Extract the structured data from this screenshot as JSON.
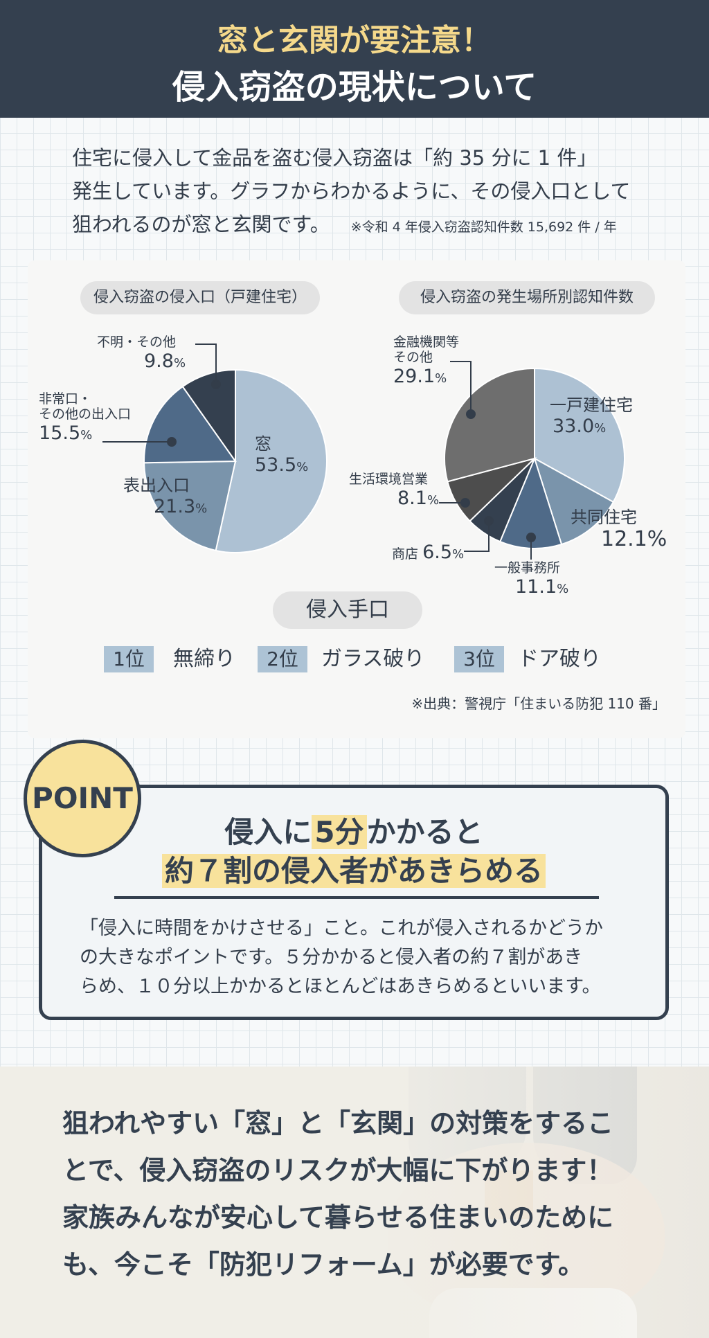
{
  "header": {
    "line1": "窓と玄関が要注意！",
    "line2": "侵入窃盗の現状について"
  },
  "intro": {
    "line1": "住宅に侵入して金品を盗む侵入窃盗は「約 35 分に 1 件」",
    "line2": "発生しています。グラフからわかるように、その侵入口として",
    "line3": "狙われるのが窓と玄関です。",
    "note": "※令和 4 年侵入窃盗認知件数 15,692 件 / 年"
  },
  "chart_data": [
    {
      "type": "pie",
      "title": "侵入窃盗の侵入口（戸建住宅）",
      "start_angle_deg": 0,
      "direction": "clockwise",
      "slices": [
        {
          "label": "窓",
          "value": 53.5,
          "color": "#adc1d3"
        },
        {
          "label": "表出入口",
          "value": 21.3,
          "color": "#7a94ab"
        },
        {
          "label": "非常口・その他の出入口",
          "value": 15.5,
          "color": "#4f6a88"
        },
        {
          "label": "不明・その他",
          "value": 9.8,
          "color": "#34404f"
        }
      ]
    },
    {
      "type": "pie",
      "title": "侵入窃盗の発生場所別認知件数",
      "start_angle_deg": 0,
      "direction": "clockwise",
      "slices": [
        {
          "label": "一戸建住宅",
          "value": 33.0,
          "color": "#adc1d3"
        },
        {
          "label": "共同住宅",
          "value": 12.1,
          "color": "#7a94ab"
        },
        {
          "label": "一般事務所",
          "value": 11.1,
          "color": "#4f6a88"
        },
        {
          "label": "商店",
          "value": 6.5,
          "color": "#34404f"
        },
        {
          "label": "生活環境営業",
          "value": 8.1,
          "color": "#4d4d4d"
        },
        {
          "label": "金融機関等その他",
          "value": 29.1,
          "color": "#6e6e6e"
        }
      ]
    }
  ],
  "labels": {
    "left": {
      "window_name": "窓",
      "window_pct": "53.5",
      "front_name": "表出入口",
      "front_pct": "21.3",
      "emergency_line1": "非常口・",
      "emergency_line2": "その他の出入口",
      "emergency_pct": "15.5",
      "unknown_name": "不明・その他",
      "unknown_pct": "9.8"
    },
    "right": {
      "house_name": "一戸建住宅",
      "house_pct": "33.0",
      "apartment_name": "共同住宅",
      "apartment_pct": "12.1%",
      "office_name": "一般事務所",
      "office_pct": "11.1",
      "shop_name": "商店",
      "shop_pct": "6.5",
      "service_name": "生活環境営業",
      "service_pct": "8.1",
      "finance_line1": "金融機関等",
      "finance_line2": "その他",
      "finance_pct": "29.1"
    },
    "percent_sign": "%"
  },
  "methods": {
    "title": "侵入手口",
    "ranks": [
      {
        "badge": "1位",
        "text": "無締り"
      },
      {
        "badge": "2位",
        "text": "ガラス破り"
      },
      {
        "badge": "3位",
        "text": "ドア破り"
      }
    ]
  },
  "source": "※出典：警視庁「住まいる防犯 110 番」",
  "point": {
    "badge": "POINT",
    "head1_a": "侵入に",
    "head1_hl": "5分",
    "head1_b": "かかると",
    "head2": "約７割の侵入者があきらめる",
    "body_line1": "「侵入に時間をかけさせる」こと。これが侵入されるかどうか",
    "body_line2": "の大きなポイントです。５分かかると侵入者の約７割があき",
    "body_line3": "らめ、１０分以上かかるとほとんどはあきらめるといいます。"
  },
  "closing": {
    "line1": "狙われやすい「窓」と「玄関」の対策をするこ",
    "line2": "とで、侵入窃盗のリスクが大幅に下がります！",
    "line3": "家族みんなが安心して暮らせる住まいのために",
    "line4": "も、今こそ「防犯リフォーム」が必要です。"
  }
}
